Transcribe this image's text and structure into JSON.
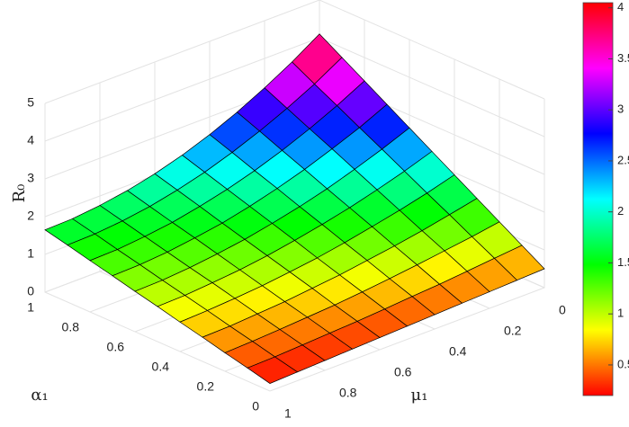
{
  "chart_data": {
    "type": "surface",
    "xlabel": "μ₁",
    "ylabel": "α₁",
    "zlabel": "R₀",
    "x": [
      0,
      0.1,
      0.2,
      0.3,
      0.4,
      0.5,
      0.6,
      0.7,
      0.8,
      0.9,
      1
    ],
    "y": [
      0,
      0.1,
      0.2,
      0.3,
      0.4,
      0.5,
      0.6,
      0.7,
      0.8,
      0.9,
      1
    ],
    "z": [
      [
        0.5,
        0.86,
        1.22,
        1.58,
        1.94,
        2.3,
        2.66,
        3.02,
        3.38,
        3.74,
        4.1
      ],
      [
        0.47,
        0.79,
        1.1,
        1.42,
        1.73,
        2.05,
        2.37,
        2.68,
        3.0,
        3.31,
        3.63
      ],
      [
        0.44,
        0.72,
        1.0,
        1.27,
        1.55,
        1.83,
        2.11,
        2.39,
        2.66,
        2.94,
        3.22
      ],
      [
        0.41,
        0.65,
        0.9,
        1.14,
        1.39,
        1.63,
        1.87,
        2.12,
        2.36,
        2.61,
        2.85
      ],
      [
        0.38,
        0.6,
        0.81,
        1.03,
        1.24,
        1.46,
        1.67,
        1.89,
        2.1,
        2.32,
        2.53
      ],
      [
        0.35,
        0.54,
        0.73,
        0.92,
        1.11,
        1.31,
        1.5,
        1.69,
        1.88,
        2.07,
        2.26
      ],
      [
        0.32,
        0.49,
        0.66,
        0.84,
        1.01,
        1.18,
        1.35,
        1.52,
        1.7,
        1.87,
        2.04
      ],
      [
        0.29,
        0.45,
        0.61,
        0.76,
        0.92,
        1.08,
        1.24,
        1.4,
        1.55,
        1.71,
        1.87
      ],
      [
        0.26,
        0.41,
        0.56,
        0.71,
        0.86,
        1.01,
        1.15,
        1.3,
        1.45,
        1.6,
        1.75
      ],
      [
        0.23,
        0.37,
        0.52,
        0.66,
        0.81,
        0.95,
        1.09,
        1.24,
        1.38,
        1.53,
        1.67
      ],
      [
        0.2,
        0.35,
        0.49,
        0.64,
        0.78,
        0.93,
        1.07,
        1.22,
        1.36,
        1.51,
        1.65
      ]
    ],
    "xlim": [
      0,
      1
    ],
    "xticks": [
      0,
      0.2,
      0.4,
      0.6,
      0.8,
      1
    ],
    "ylim": [
      0,
      1
    ],
    "yticks": [
      0,
      0.2,
      0.4,
      0.6,
      0.8,
      1
    ],
    "zlim": [
      0,
      5
    ],
    "zticks": [
      0,
      1,
      2,
      3,
      4,
      5
    ],
    "colormap": "hsv",
    "clim": [
      0.2,
      4.05
    ],
    "colorbar_ticks": [
      0.5,
      1,
      1.5,
      2,
      2.5,
      3,
      3.5,
      4
    ],
    "grid": true,
    "edge_color": "#000000"
  }
}
